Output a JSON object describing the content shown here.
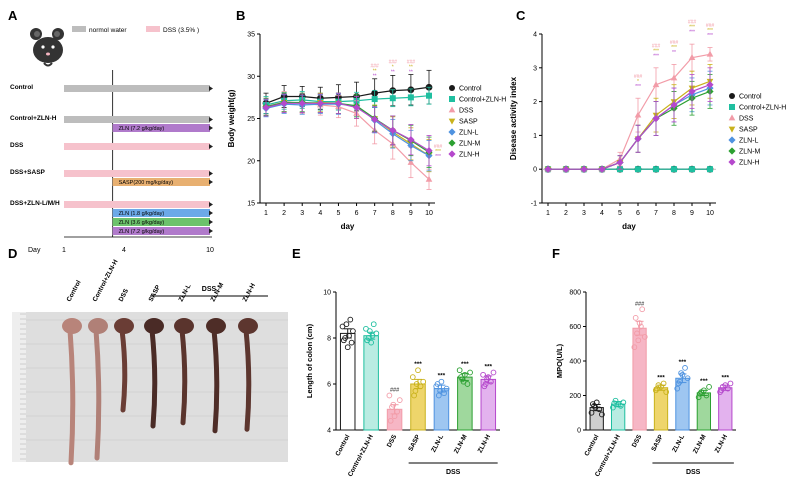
{
  "panel_labels": {
    "a": "A",
    "b": "B",
    "c": "C",
    "d": "D",
    "e": "E",
    "f": "F"
  },
  "colors": {
    "Control": "#1a1a1a",
    "Control+ZLN-H": "#1fbfa0",
    "DSS": "#f29ca8",
    "SASP": "#c9b21c",
    "ZLN-L": "#4f93e0",
    "ZLN-M": "#2ca032",
    "ZLN-H": "#b548cc",
    "E_Control": "#ffffff",
    "E_Control+ZLN-H": "#b9ece2",
    "E_DSS": "#f6b6c5",
    "E_SASP": "#eed56b",
    "E_ZLN-L": "#9ec6f1",
    "E_ZLN-M": "#9fd89d",
    "E_ZLN-H": "#e3b2ee",
    "F_Control": "#cfcfcf"
  },
  "timeline": {
    "legend": [
      {
        "label": "normol water",
        "color": "#bdbdbd"
      },
      {
        "label": "DSS (3.5% )",
        "color": "#f6c2cc"
      }
    ],
    "day_label": "Day",
    "day_ticks": [
      "1",
      "4",
      "10"
    ],
    "groups": [
      {
        "label": "Control",
        "segments": [
          {
            "text": "",
            "color": "#bdbdbd",
            "from": 1,
            "to": 10
          }
        ]
      },
      {
        "label": "Control+ZLN-H",
        "segments": [
          {
            "text": "",
            "color": "#bdbdbd",
            "from": 1,
            "to": 10
          },
          {
            "text": "ZLN (7.2 g/kg/day)",
            "color": "#b07acb",
            "from": 4,
            "to": 10
          }
        ]
      },
      {
        "label": "DSS",
        "segments": [
          {
            "text": "",
            "color": "#f6c2cc",
            "from": 1,
            "to": 10
          }
        ]
      },
      {
        "label": "DSS+SASP",
        "segments": [
          {
            "text": "",
            "color": "#f6c2cc",
            "from": 1,
            "to": 10
          },
          {
            "text": "SASP(200 mg/kg/day)",
            "color": "#e8b071",
            "from": 4,
            "to": 10
          }
        ]
      },
      {
        "label": "DSS+ZLN-L/M/H",
        "segments": [
          {
            "text": "",
            "color": "#f6c2cc",
            "from": 1,
            "to": 10
          },
          {
            "text": "ZLN (1.8 g/kg/day)",
            "color": "#6ca9e8",
            "from": 4,
            "to": 10
          },
          {
            "text": "ZLN (3.6 g/kg/day)",
            "color": "#6cc26c",
            "from": 4,
            "to": 10
          },
          {
            "text": "ZLN (7.2 g/kg/day)",
            "color": "#b07acb",
            "from": 4,
            "to": 10
          }
        ]
      }
    ]
  },
  "photo": {
    "labels": [
      "Control",
      "Control+ZLN-H",
      "DSS",
      "SASP",
      "ZLN-L",
      "ZLN-M",
      "ZLN-H"
    ],
    "dss_label": "DSS",
    "colon_lengths_cm": [
      8.3,
      8.0,
      5.0,
      6.0,
      5.8,
      6.3,
      6.2
    ]
  },
  "chart_data": [
    {
      "type": "line",
      "ylabel": "Body weight(g)",
      "xlabel": "day",
      "ylim": [
        15,
        35
      ],
      "yticks": [
        15,
        20,
        25,
        30,
        35
      ],
      "x": [
        1,
        2,
        3,
        4,
        5,
        6,
        7,
        8,
        9,
        10
      ],
      "legend_position": "right",
      "series": [
        {
          "name": "Control",
          "marker": "circle",
          "values": [
            26.8,
            27.6,
            27.6,
            27.4,
            27.5,
            27.6,
            28.0,
            28.3,
            28.4,
            28.7
          ],
          "err": [
            1.2,
            1.3,
            1.2,
            1.3,
            1.5,
            1.7,
            1.7,
            1.8,
            1.8,
            2.0
          ]
        },
        {
          "name": "Control+ZLN-H",
          "marker": "square",
          "values": [
            26.6,
            27.1,
            27.2,
            27.0,
            27.0,
            27.1,
            27.3,
            27.4,
            27.5,
            27.7
          ],
          "err": [
            1.0,
            1.0,
            1.0,
            1.0,
            1.0,
            1.0,
            1.0,
            1.0,
            1.0,
            1.0
          ]
        },
        {
          "name": "DSS",
          "marker": "triangle",
          "values": [
            26.4,
            27.0,
            26.8,
            26.6,
            26.4,
            25.6,
            23.6,
            22.0,
            19.8,
            17.8
          ],
          "err": [
            1.0,
            1.2,
            1.2,
            1.2,
            1.3,
            1.5,
            1.6,
            1.8,
            1.8,
            1.2
          ]
        },
        {
          "name": "SASP",
          "marker": "triangle-down",
          "values": [
            26.3,
            26.9,
            26.8,
            26.9,
            26.8,
            26.4,
            25.0,
            23.4,
            22.0,
            20.6
          ],
          "err": [
            1.0,
            1.1,
            1.1,
            1.1,
            1.2,
            1.4,
            1.6,
            1.8,
            1.9,
            1.9
          ]
        },
        {
          "name": "ZLN-L",
          "marker": "diamond",
          "values": [
            26.2,
            26.7,
            26.6,
            26.7,
            26.7,
            26.5,
            24.8,
            23.2,
            21.8,
            20.6
          ],
          "err": [
            1.0,
            1.1,
            1.1,
            1.1,
            1.2,
            1.3,
            1.5,
            1.7,
            1.8,
            1.8
          ]
        },
        {
          "name": "ZLN-M",
          "marker": "diamond",
          "values": [
            26.4,
            26.9,
            26.9,
            26.8,
            26.8,
            26.5,
            25.0,
            23.6,
            22.4,
            21.0
          ],
          "err": [
            1.0,
            1.1,
            1.1,
            1.1,
            1.2,
            1.3,
            1.5,
            1.7,
            1.8,
            1.8
          ]
        },
        {
          "name": "ZLN-H",
          "marker": "diamond",
          "values": [
            26.3,
            26.8,
            26.8,
            26.8,
            26.8,
            26.3,
            24.9,
            23.6,
            22.5,
            21.2
          ],
          "err": [
            1.0,
            1.1,
            1.1,
            1.1,
            1.2,
            1.3,
            1.5,
            1.7,
            1.8,
            1.8
          ]
        }
      ],
      "annotations": [
        {
          "x": 7,
          "lines": [
            "###",
            "**",
            "**"
          ]
        },
        {
          "x": 8,
          "lines": [
            "###",
            "*",
            "**"
          ]
        },
        {
          "x": 9,
          "lines": [
            "###",
            "**",
            "**"
          ]
        },
        {
          "x": 10,
          "lines": [
            "###",
            "***",
            "***"
          ]
        }
      ]
    },
    {
      "type": "line",
      "ylabel": "Disease activity index",
      "xlabel": "day",
      "ylim": [
        -1,
        4
      ],
      "yticks": [
        -1,
        0,
        1,
        2,
        3,
        4
      ],
      "x": [
        1,
        2,
        3,
        4,
        5,
        6,
        7,
        8,
        9,
        10
      ],
      "legend_position": "right",
      "series": [
        {
          "name": "Control",
          "marker": "circle",
          "values": [
            0,
            0,
            0,
            0,
            0,
            0,
            0,
            0,
            0,
            0
          ],
          "err": [
            0,
            0,
            0,
            0,
            0,
            0,
            0,
            0,
            0,
            0
          ]
        },
        {
          "name": "Control+ZLN-H",
          "marker": "square",
          "values": [
            0,
            0,
            0,
            0,
            0,
            0,
            0,
            0,
            0,
            0
          ],
          "err": [
            0,
            0,
            0,
            0,
            0,
            0,
            0,
            0,
            0,
            0
          ]
        },
        {
          "name": "DSS",
          "marker": "triangle",
          "values": [
            0,
            0,
            0,
            0,
            0.3,
            1.6,
            2.5,
            2.7,
            3.3,
            3.4
          ],
          "err": [
            0,
            0,
            0,
            0,
            0.2,
            0.5,
            0.5,
            0.4,
            0.4,
            0.2
          ]
        },
        {
          "name": "SASP",
          "marker": "triangle-down",
          "values": [
            0,
            0,
            0,
            0,
            0.2,
            0.9,
            1.6,
            2.0,
            2.4,
            2.6
          ],
          "err": [
            0,
            0,
            0,
            0,
            0.2,
            0.4,
            0.5,
            0.5,
            0.5,
            0.5
          ]
        },
        {
          "name": "ZLN-L",
          "marker": "diamond",
          "values": [
            0,
            0,
            0,
            0,
            0.2,
            0.9,
            1.5,
            1.9,
            2.2,
            2.4
          ],
          "err": [
            0,
            0,
            0,
            0,
            0.2,
            0.4,
            0.5,
            0.5,
            0.5,
            0.5
          ]
        },
        {
          "name": "ZLN-M",
          "marker": "diamond",
          "values": [
            0,
            0,
            0,
            0,
            0.2,
            0.9,
            1.5,
            1.8,
            2.1,
            2.3
          ],
          "err": [
            0,
            0,
            0,
            0,
            0.2,
            0.4,
            0.5,
            0.5,
            0.5,
            0.5
          ]
        },
        {
          "name": "ZLN-H",
          "marker": "diamond",
          "values": [
            0,
            0,
            0,
            0,
            0.2,
            0.9,
            1.5,
            1.9,
            2.3,
            2.5
          ],
          "err": [
            0,
            0,
            0,
            0,
            0.2,
            0.4,
            0.5,
            0.5,
            0.5,
            0.5
          ]
        }
      ],
      "annotations": [
        {
          "x": 6,
          "lines": [
            "###",
            "*",
            "***"
          ]
        },
        {
          "x": 7,
          "lines": [
            "###",
            "***",
            "***"
          ]
        },
        {
          "x": 8,
          "lines": [
            "###",
            "***",
            "**"
          ]
        },
        {
          "x": 9,
          "lines": [
            "###",
            "***",
            "***"
          ]
        },
        {
          "x": 10,
          "lines": [
            "###",
            "***",
            "***"
          ]
        }
      ]
    },
    {
      "type": "bar",
      "ylabel": "Length of colon (cm)",
      "ylim": [
        4,
        10
      ],
      "yticks": [
        4,
        6,
        8,
        10
      ],
      "categories": [
        "Control",
        "Control+ZLN-H",
        "DSS",
        "SASP",
        "ZLN-L",
        "ZLN-M",
        "ZLN-H"
      ],
      "values": [
        8.2,
        8.1,
        4.9,
        6.0,
        5.8,
        6.3,
        6.2
      ],
      "sem": [
        0.2,
        0.15,
        0.2,
        0.2,
        0.15,
        0.15,
        0.15
      ],
      "points": [
        [
          8.5,
          8.0,
          7.6,
          8.8,
          8.3,
          7.9,
          8.6,
          8.1,
          7.8
        ],
        [
          8.4,
          8.0,
          7.8,
          8.6,
          8.2,
          7.9,
          8.3,
          8.1
        ],
        [
          5.5,
          5.0,
          4.6,
          4.8,
          5.3,
          4.4,
          5.1
        ],
        [
          6.3,
          5.7,
          6.6,
          5.9,
          6.1,
          5.5,
          6.0
        ],
        [
          5.9,
          5.5,
          6.1,
          5.6,
          5.8,
          6.0,
          5.7
        ],
        [
          6.6,
          6.2,
          6.4,
          6.0,
          6.5,
          6.3,
          6.1
        ],
        [
          6.4,
          6.0,
          6.3,
          6.1,
          6.5,
          5.9,
          6.2
        ]
      ],
      "sig": [
        "",
        "",
        "###",
        "***",
        "***",
        "***",
        "***"
      ],
      "group_label": "DSS"
    },
    {
      "type": "bar",
      "ylabel": "MPO(U/L)",
      "ylim": [
        0,
        800
      ],
      "yticks": [
        0,
        200,
        400,
        600,
        800
      ],
      "categories": [
        "Control",
        "Control+ZLN-H",
        "DSS",
        "SASP",
        "ZLN-L",
        "ZLN-M",
        "ZLN-H"
      ],
      "values": [
        130,
        150,
        590,
        245,
        300,
        215,
        245
      ],
      "sem": [
        18,
        15,
        40,
        15,
        25,
        15,
        15
      ],
      "points": [
        [
          100,
          140,
          160,
          120,
          90,
          150,
          130
        ],
        [
          130,
          170,
          150,
          140,
          160,
          155
        ],
        [
          480,
          560,
          620,
          700,
          540,
          650,
          520,
          600
        ],
        [
          230,
          260,
          250,
          270,
          220,
          240
        ],
        [
          240,
          280,
          320,
          360,
          300,
          270,
          330
        ],
        [
          190,
          220,
          230,
          200,
          250,
          210
        ],
        [
          220,
          250,
          260,
          240,
          270,
          230
        ]
      ],
      "sig": [
        "",
        "",
        "###",
        "***",
        "***",
        "***",
        "***"
      ],
      "group_label": "DSS"
    }
  ]
}
